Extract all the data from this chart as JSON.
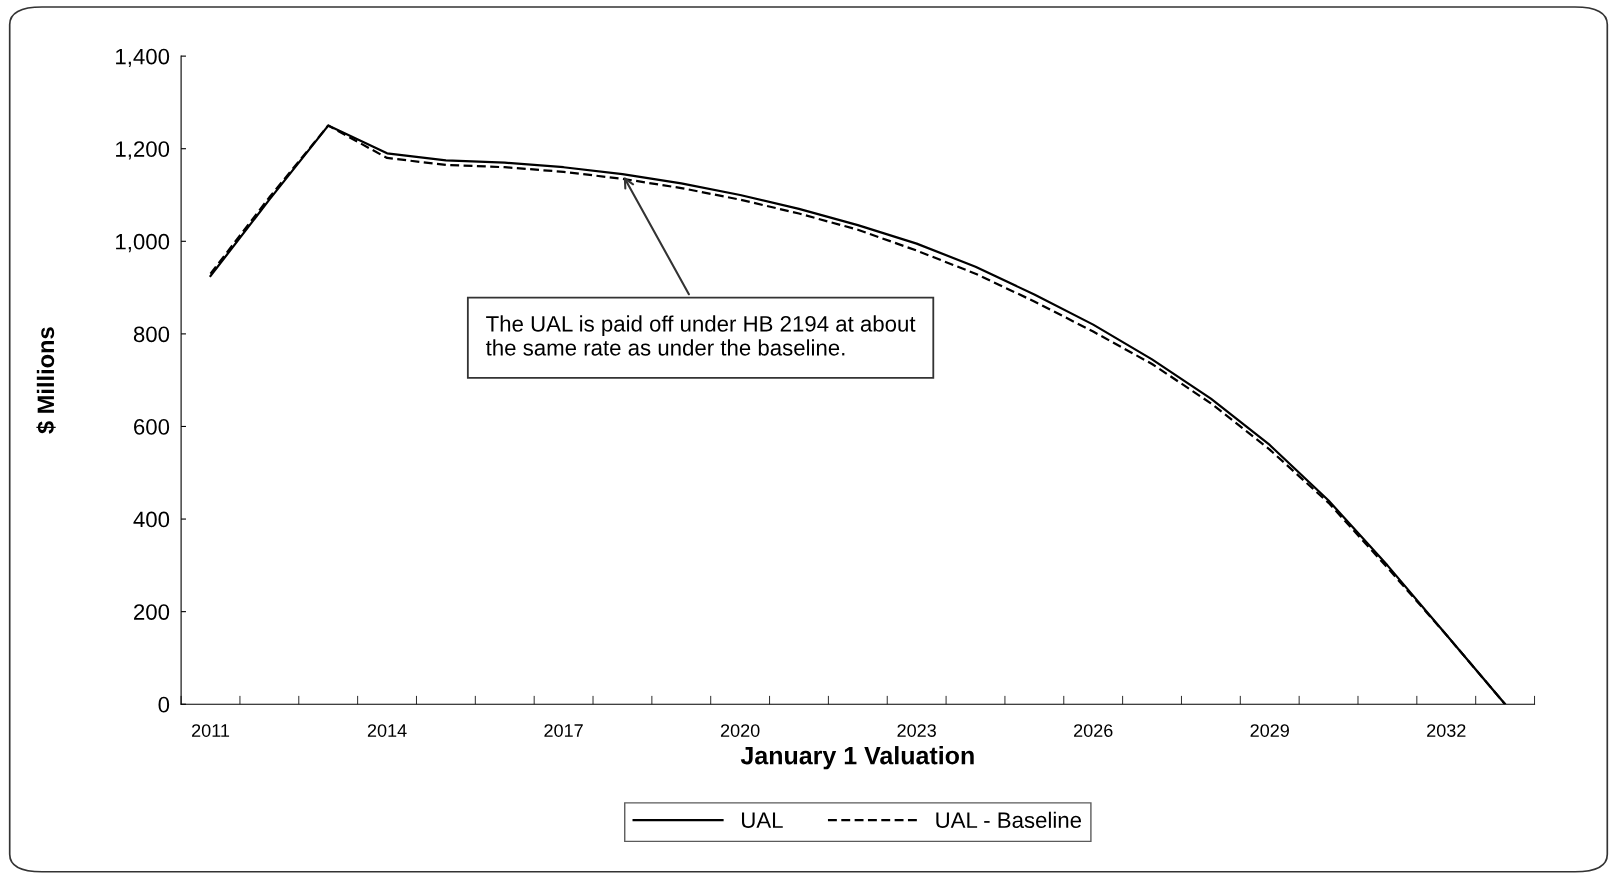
{
  "chart_data": {
    "type": "line",
    "xlabel": "January 1 Valuation",
    "ylabel": "$ Millions",
    "x": [
      2011,
      2012,
      2013,
      2014,
      2015,
      2016,
      2017,
      2018,
      2019,
      2020,
      2021,
      2022,
      2023,
      2024,
      2025,
      2026,
      2027,
      2028,
      2029,
      2030,
      2031,
      2032,
      2033
    ],
    "series": [
      {
        "name": "UAL",
        "color": "#000000",
        "line_style": "solid",
        "values": [
          925,
          1090,
          1250,
          1190,
          1175,
          1170,
          1160,
          1145,
          1125,
          1100,
          1070,
          1035,
          995,
          945,
          885,
          820,
          745,
          660,
          560,
          440,
          300,
          150,
          0
        ]
      },
      {
        "name": "UAL - Baseline",
        "color": "#000000",
        "line_style": "dashed",
        "values": [
          930,
          1095,
          1250,
          1180,
          1165,
          1160,
          1150,
          1135,
          1115,
          1090,
          1060,
          1025,
          980,
          930,
          870,
          805,
          735,
          650,
          550,
          435,
          295,
          150,
          0
        ]
      }
    ],
    "xlim": [
      2010.5,
      2033.5
    ],
    "xticks": [
      2011,
      2014,
      2017,
      2020,
      2023,
      2026,
      2029,
      2032,
      {
        "value": 2010.5,
        "label": null
      },
      {
        "value": 2011.5,
        "label": null
      },
      {
        "value": 2012.5,
        "label": null
      },
      {
        "value": 2013.5,
        "label": null
      },
      {
        "value": 2014.5,
        "label": null
      },
      {
        "value": 2015.5,
        "label": null
      },
      {
        "value": 2016.5,
        "label": null
      },
      {
        "value": 2017.5,
        "label": null
      },
      {
        "value": 2018.5,
        "label": null
      },
      {
        "value": 2019.5,
        "label": null
      },
      {
        "value": 2020.5,
        "label": null
      },
      {
        "value": 2021.5,
        "label": null
      },
      {
        "value": 2022.5,
        "label": null
      },
      {
        "value": 2023.5,
        "label": null
      },
      {
        "value": 2024.5,
        "label": null
      },
      {
        "value": 2025.5,
        "label": null
      },
      {
        "value": 2026.5,
        "label": null
      },
      {
        "value": 2027.5,
        "label": null
      },
      {
        "value": 2028.5,
        "label": null
      },
      {
        "value": 2029.5,
        "label": null
      },
      {
        "value": 2030.5,
        "label": null
      },
      {
        "value": 2031.5,
        "label": null
      },
      {
        "value": 2032.5,
        "label": null
      },
      {
        "value": 2033.5,
        "label": null
      }
    ],
    "ylim": [
      0,
      1400
    ],
    "yticks": [
      0,
      200,
      400,
      600,
      800,
      {
        "value": 1000,
        "label": "1,000"
      },
      {
        "value": 1200,
        "label": "1,200"
      },
      {
        "value": 1400,
        "label": "1,400"
      }
    ],
    "annotations": [
      {
        "text": "The UAL is paid off under HB 2194 at about\nthe same rate as under the baseline.",
        "x": 2018,
        "y": 1145
      }
    ],
    "grid": false,
    "legend": "bottom",
    "marker": "none"
  }
}
